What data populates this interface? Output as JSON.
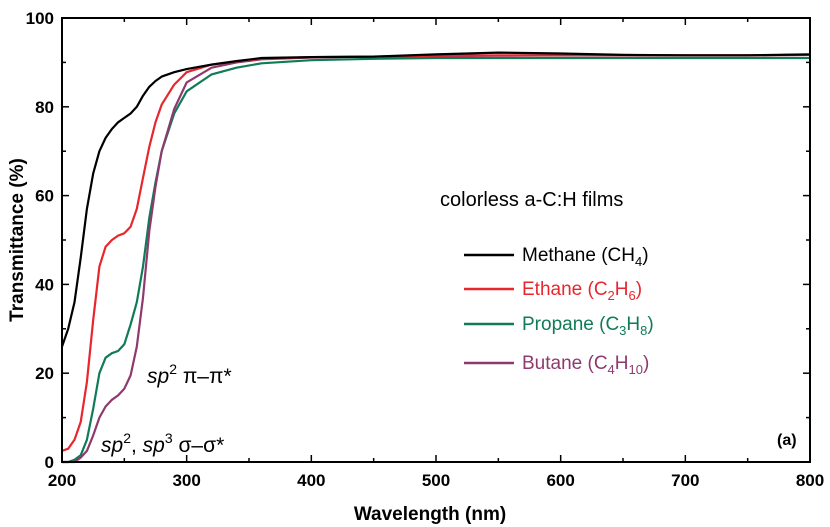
{
  "chart_data": {
    "type": "line",
    "xlabel": "Wavelength (nm)",
    "ylabel": "Transmittance (%)",
    "xlim": [
      200,
      800
    ],
    "ylim": [
      0,
      100
    ],
    "xticks": [
      200,
      300,
      400,
      500,
      600,
      700,
      800
    ],
    "yticks": [
      0,
      20,
      40,
      60,
      80,
      100
    ],
    "grid": false,
    "legend_title": "colorless a-C:H films",
    "legend_position": "right-middle",
    "panel_label": "(a)",
    "annotations": [
      {
        "base": "sp",
        "sup": "2",
        "rest": " π–π*"
      },
      {
        "base": "sp",
        "sup": "2",
        "mid": ", ",
        "base2": "sp",
        "sup2": "3",
        "rest": " σ–σ*"
      }
    ],
    "series": [
      {
        "name": "Methane (CH4)",
        "legend": {
          "main": "Methane (CH",
          "sub": "4",
          "tail": ")"
        },
        "color": "#000000",
        "x": [
          200,
          205,
          210,
          215,
          220,
          225,
          230,
          235,
          240,
          245,
          250,
          255,
          260,
          265,
          270,
          275,
          280,
          290,
          300,
          320,
          340,
          360,
          400,
          450,
          500,
          550,
          600,
          650,
          700,
          750,
          800
        ],
        "y": [
          26,
          30,
          36,
          46,
          57,
          65,
          70,
          73,
          75,
          76.5,
          77.5,
          78.5,
          80,
          82.5,
          84.5,
          85.8,
          86.8,
          87.8,
          88.5,
          89.5,
          90.3,
          91.0,
          91.2,
          91.3,
          91.8,
          92.2,
          92.0,
          91.7,
          91.6,
          91.6,
          91.8
        ]
      },
      {
        "name": "Ethane (C2H6)",
        "legend": {
          "main": "Ethane  (C",
          "sub": "2",
          "main2": "H",
          "sub2": "6",
          "tail": ")"
        },
        "color": "#e8262d",
        "x": [
          200,
          205,
          210,
          215,
          220,
          225,
          230,
          235,
          240,
          245,
          250,
          255,
          260,
          265,
          270,
          275,
          280,
          290,
          300,
          320,
          340,
          360,
          400,
          450,
          500,
          550,
          600,
          650,
          700,
          750,
          800
        ],
        "y": [
          2.5,
          3,
          5,
          9,
          18,
          32,
          44,
          48.5,
          50,
          51,
          51.5,
          53,
          57,
          64,
          71,
          76.5,
          80.5,
          85,
          87.8,
          89.5,
          90.3,
          90.8,
          91.2,
          91.3,
          91.5,
          91.6,
          91.6,
          91.6,
          91.6,
          91.6,
          91.7
        ]
      },
      {
        "name": "Propane (C3H8)",
        "legend": {
          "main": "Propane  (C",
          "sub": "3",
          "main2": "H",
          "sub2": "8",
          "tail": ")"
        },
        "color": "#0f7b57",
        "x": [
          200,
          205,
          210,
          215,
          220,
          225,
          230,
          235,
          240,
          245,
          250,
          255,
          260,
          265,
          270,
          275,
          280,
          290,
          300,
          320,
          340,
          360,
          400,
          450,
          500,
          550,
          600,
          650,
          700,
          750,
          800
        ],
        "y": [
          0,
          0,
          0.5,
          1.5,
          5,
          12,
          20,
          23.5,
          24.5,
          25,
          26.5,
          31,
          36,
          44,
          55,
          63,
          70,
          78.5,
          83.5,
          87.3,
          88.8,
          89.8,
          90.5,
          90.8,
          91.0,
          91.0,
          91.0,
          91.0,
          91.0,
          91.0,
          91.0
        ]
      },
      {
        "name": "Butane (C4H10)",
        "legend": {
          "main": "Butane  (C",
          "sub": "4",
          "main2": "H",
          "sub2": "10",
          "tail": ")"
        },
        "color": "#8e3a6e",
        "x": [
          200,
          205,
          210,
          215,
          220,
          225,
          230,
          235,
          240,
          245,
          250,
          255,
          260,
          265,
          270,
          275,
          280,
          290,
          300,
          320,
          340,
          360,
          400,
          450,
          500,
          550,
          600,
          650,
          700,
          750,
          800
        ],
        "y": [
          0,
          0,
          0,
          1,
          2.5,
          6,
          10,
          12.5,
          14,
          15,
          16.5,
          19.5,
          26,
          37,
          52,
          62,
          70,
          79.5,
          85.5,
          88.8,
          90.0,
          90.7,
          91.1,
          91.3,
          91.4,
          91.5,
          91.6,
          91.6,
          91.6,
          91.6,
          91.7
        ]
      }
    ]
  }
}
